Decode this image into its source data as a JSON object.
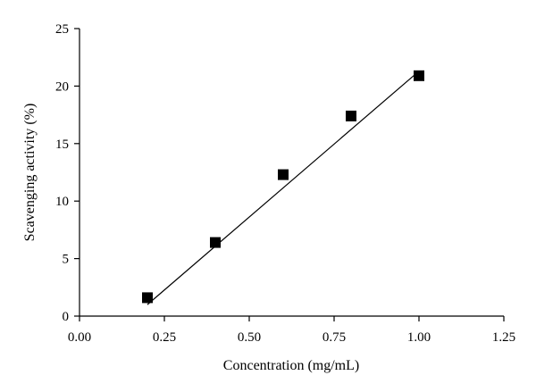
{
  "chart_data": {
    "type": "scatter",
    "title": "",
    "xlabel": "Concentration (mg/mL)",
    "ylabel": "Scavenging activity (%)",
    "xlim": [
      0,
      1.25
    ],
    "ylim": [
      0,
      25
    ],
    "xticks": [
      "0.00",
      "0.25",
      "0.50",
      "0.75",
      "1.00",
      "1.25"
    ],
    "yticks": [
      "0",
      "5",
      "10",
      "15",
      "20",
      "25"
    ],
    "grid": false,
    "legend": "none",
    "marker": "square",
    "series": [
      {
        "x": [
          0.2,
          0.4,
          0.6,
          0.8,
          1.0
        ],
        "y": [
          1.6,
          6.4,
          12.3,
          17.4,
          20.9
        ]
      }
    ],
    "fit_line": {
      "x": [
        0.2,
        1.0
      ],
      "y": [
        1.0,
        21.3
      ]
    },
    "colors": {
      "marker": "#000000",
      "line": "#000000",
      "axis": "#000000"
    }
  }
}
